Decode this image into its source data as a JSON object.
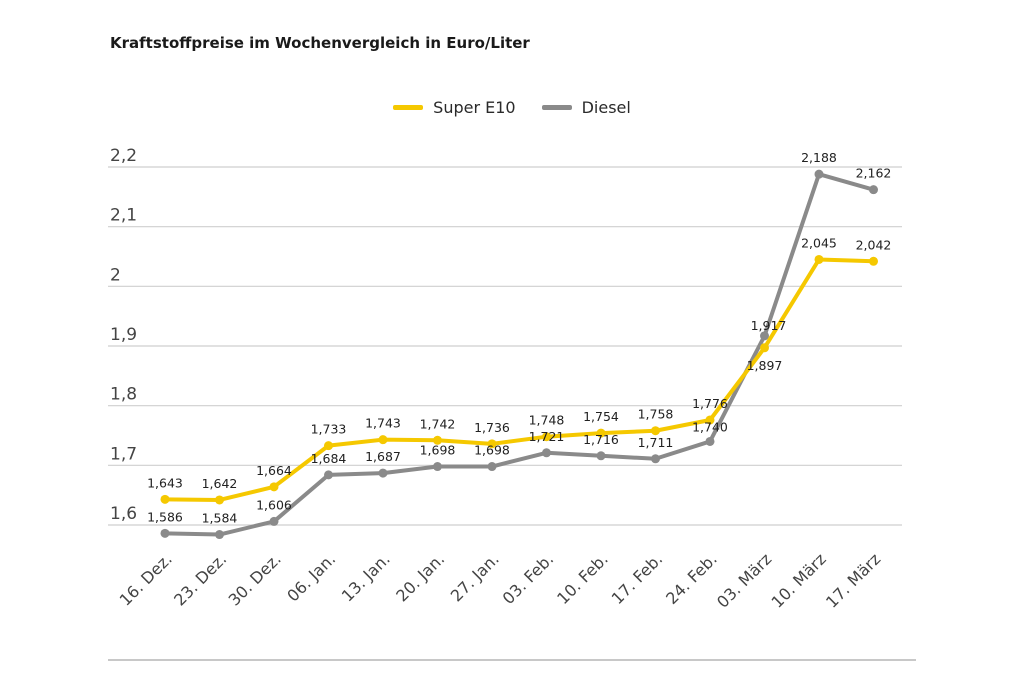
{
  "chart_data": {
    "type": "line",
    "title": "Kraftstoffpreise im Wochenvergleich in Euro/Liter",
    "categories": [
      "16. Dez.",
      "23. Dez.",
      "30. Dez.",
      "06. Jan.",
      "13. Jan.",
      "20. Jan.",
      "27. Jan.",
      "03. Feb.",
      "10. Feb.",
      "17. Feb.",
      "24. Feb.",
      "03. März",
      "10. März",
      "17. März"
    ],
    "series": [
      {
        "name": "Super E10",
        "color": "#f5c800",
        "values": [
          1.643,
          1.642,
          1.664,
          1.733,
          1.743,
          1.742,
          1.736,
          1.748,
          1.754,
          1.758,
          1.776,
          1.897,
          2.045,
          2.042
        ],
        "labels": [
          "1,643",
          "1,642",
          "1,664",
          "1,733",
          "1,743",
          "1,742",
          "1,736",
          "1,748",
          "1,754",
          "1,758",
          "1,776",
          "1,897",
          "2,045",
          "2,042"
        ]
      },
      {
        "name": "Diesel",
        "color": "#8a8a8a",
        "values": [
          1.586,
          1.584,
          1.606,
          1.684,
          1.687,
          1.698,
          1.698,
          1.721,
          1.716,
          1.711,
          1.74,
          1.917,
          2.188,
          2.162
        ],
        "labels": [
          "1,586",
          "1,584",
          "1,606",
          "1,684",
          "1,687",
          "1,698",
          "1,698",
          "1,721",
          "1,716",
          "1,711",
          "1,740",
          "1,917",
          "2,188",
          "2,162"
        ]
      }
    ],
    "yticks": [
      1.6,
      1.7,
      1.8,
      1.9,
      2.0,
      2.1,
      2.2
    ],
    "ytick_labels": [
      "1,6",
      "1,7",
      "1,8",
      "1,9",
      "2",
      "2,1",
      "2,2"
    ],
    "ylim": [
      1.56,
      2.2
    ],
    "xlabel": "",
    "ylabel": "",
    "grid": true,
    "legend_position": "top-center"
  }
}
